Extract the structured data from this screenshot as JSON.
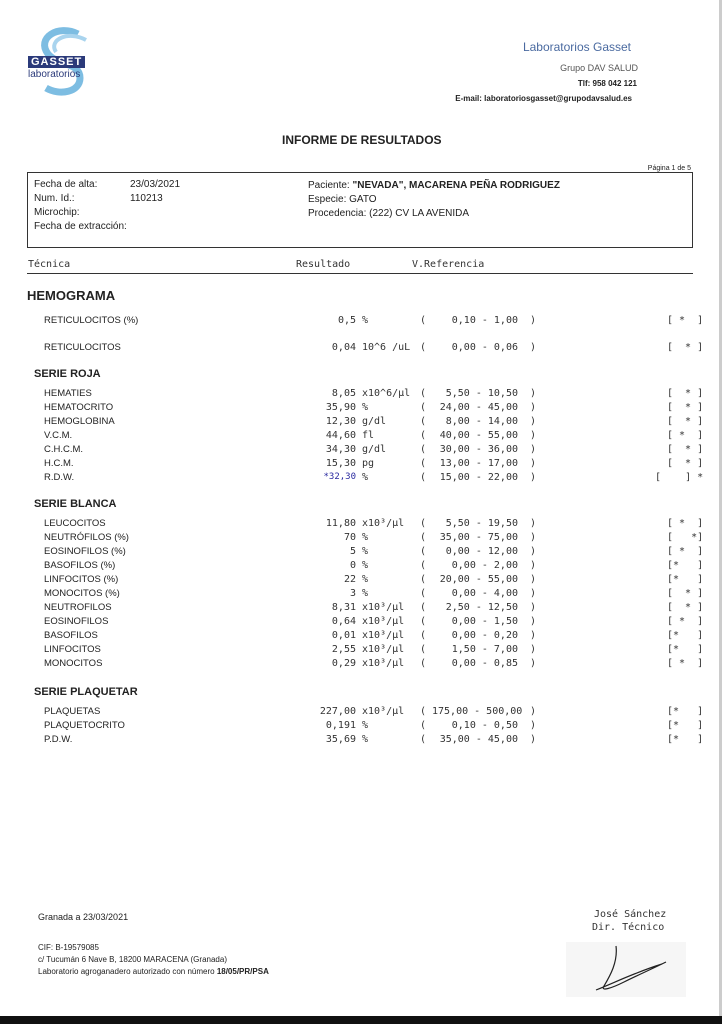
{
  "header": {
    "logo_text_top": "GASSET",
    "logo_text_bottom": "laboratorios",
    "lab_name": "Laboratorios Gasset",
    "group": "Grupo DAV SALUD",
    "phone": "Tlf: 958 042 121",
    "email": "E-mail: laboratoriosgasset@grupodavsalud.es",
    "colors": {
      "brand_blue": "#2b3a7a",
      "logo_light": "#6fb3dc",
      "lab_name": "#4a6aa0"
    }
  },
  "title": "INFORME DE RESULTADOS",
  "page": "Página 1 de 5",
  "info": {
    "fecha_alta_label": "Fecha de alta:",
    "fecha_alta": "23/03/2021",
    "num_id_label": "Num. Id.:",
    "num_id": "110213",
    "microchip_label": "Microchip:",
    "fecha_extraccion_label": "Fecha de extracción:",
    "paciente_label": "Paciente:",
    "paciente": "\"NEVADA\", MACARENA PEÑA RODRIGUEZ",
    "especie_label": "Especie:",
    "especie": "GATO",
    "procedencia_label": "Procedencia:",
    "procedencia": "(222) CV LA AVENIDA"
  },
  "columns": {
    "tecnica": "Técnica",
    "resultado": "Resultado",
    "referencia": "V.Referencia"
  },
  "main_section": "HEMOGRAMA",
  "groups": [
    {
      "title": "",
      "rows": [
        {
          "name": "RETICULOCITOS (%)",
          "result": "0,5",
          "unit": "%",
          "range": "0,10 - 1,00",
          "flag": "[ *  ]"
        },
        {
          "name": "RETICULOCITOS",
          "result": "0,04",
          "unit": "10^6 /uL",
          "range": "0,00 - 0,06",
          "flag": "[  * ]"
        }
      ]
    },
    {
      "title": "SERIE ROJA",
      "rows": [
        {
          "name": "HEMATIES",
          "result": "8,05",
          "unit": "x10^6/µl",
          "range": "5,50 - 10,50",
          "flag": "[  * ]"
        },
        {
          "name": "HEMATOCRITO",
          "result": "35,90",
          "unit": "%",
          "range": "24,00 - 45,00",
          "flag": "[  * ]"
        },
        {
          "name": "HEMOGLOBINA",
          "result": "12,30",
          "unit": "g/dl",
          "range": "8,00 - 14,00",
          "flag": "[  * ]"
        },
        {
          "name": "V.C.M.",
          "result": "44,60",
          "unit": "fl",
          "range": "40,00 - 55,00",
          "flag": "[ *  ]"
        },
        {
          "name": "C.H.C.M.",
          "result": "34,30",
          "unit": "g/dl",
          "range": "30,00 - 36,00",
          "flag": "[  * ]"
        },
        {
          "name": "H.C.M.",
          "result": "15,30",
          "unit": "pg",
          "range": "13,00 - 17,00",
          "flag": "[  * ]"
        },
        {
          "name": "R.D.W.",
          "result": "*32,30",
          "unit": "%",
          "range": "15,00 - 22,00",
          "flag": "[    ] *",
          "abnormal": true
        }
      ]
    },
    {
      "title": "SERIE BLANCA",
      "rows": [
        {
          "name": "LEUCOCITOS",
          "result": "11,80",
          "unit": "x10³/µl",
          "range": "5,50 - 19,50",
          "flag": "[ *  ]"
        },
        {
          "name": "NEUTRÓFILOS (%)",
          "result": "70",
          "unit": "%",
          "range": "35,00 - 75,00",
          "flag": "[   *]"
        },
        {
          "name": "EOSINOFILOS (%)",
          "result": "5",
          "unit": "%",
          "range": "0,00 - 12,00",
          "flag": "[ *  ]"
        },
        {
          "name": "BASOFILOS (%)",
          "result": "0",
          "unit": "%",
          "range": "0,00 - 2,00",
          "flag": "[*   ]"
        },
        {
          "name": "LINFOCITOS (%)",
          "result": "22",
          "unit": "%",
          "range": "20,00 - 55,00",
          "flag": "[*   ]"
        },
        {
          "name": "MONOCITOS (%)",
          "result": "3",
          "unit": "%",
          "range": "0,00 - 4,00",
          "flag": "[  * ]"
        },
        {
          "name": "NEUTROFILOS",
          "result": "8,31",
          "unit": "x10³/µl",
          "range": "2,50 - 12,50",
          "flag": "[  * ]"
        },
        {
          "name": "EOSINOFILOS",
          "result": "0,64",
          "unit": "x10³/µl",
          "range": "0,00 - 1,50",
          "flag": "[ *  ]"
        },
        {
          "name": "BASOFILOS",
          "result": "0,01",
          "unit": "x10³/µl",
          "range": "0,00 - 0,20",
          "flag": "[*   ]"
        },
        {
          "name": "LINFOCITOS",
          "result": "2,55",
          "unit": "x10³/µl",
          "range": "1,50 - 7,00",
          "flag": "[*   ]"
        },
        {
          "name": "MONOCITOS",
          "result": "0,29",
          "unit": "x10³/µl",
          "range": "0,00 - 0,85",
          "flag": "[ *  ]"
        }
      ]
    },
    {
      "title": "SERIE PLAQUETAR",
      "rows": [
        {
          "name": "PLAQUETAS",
          "result": "227,00",
          "unit": "x10³/µl",
          "range": "175,00 - 500,00",
          "flag": "[*   ]"
        },
        {
          "name": "PLAQUETOCRITO",
          "result": "0,191",
          "unit": "%",
          "range": "0,10 - 0,50",
          "flag": "[*   ]"
        },
        {
          "name": "P.D.W.",
          "result": "35,69",
          "unit": "%",
          "range": "35,00 - 45,00",
          "flag": "[*   ]"
        }
      ]
    }
  ],
  "footer": {
    "place_date": "Granada a 23/03/2021",
    "cif": "CIF: B-19579085",
    "address": "c/ Tucumán 6 Nave B, 18200 MARACENA (Granada)",
    "authorized": "Laboratorio agroganadero autorizado con número",
    "authorized_number": "18/05/PR/PSA",
    "signer_name": "José Sánchez",
    "signer_title": "Dir. Técnico",
    "abnormal_color": "#2a2aa0"
  }
}
